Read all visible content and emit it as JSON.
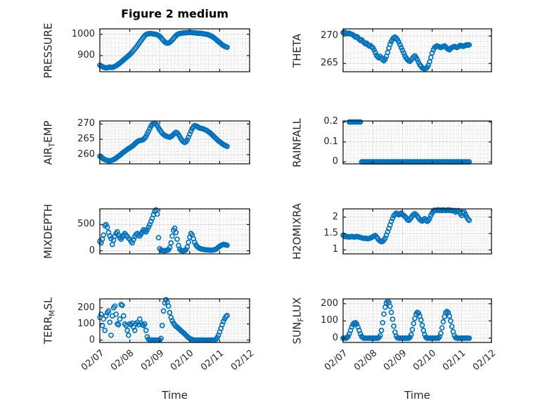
{
  "title": "Figure 2 medium",
  "x_axis": {
    "label": "Time",
    "tick_labels": [
      "02/07",
      "02/08",
      "02/09",
      "02/10",
      "02/11",
      "02/12"
    ],
    "range_days": [
      0,
      5
    ],
    "minor_step_days": 0.125
  },
  "sampling": {
    "start_day": 0,
    "step_days": 0.0416667
  },
  "marker": {
    "shape": "open-circle",
    "color": "#0072BD",
    "radius": 3,
    "stroke_width": 1.7
  },
  "colors": {
    "accent_blue": "#0072BD",
    "axes_box": "#1b1b1b",
    "major_grid": "#dcdcdc",
    "minor_grid": "#cacaca",
    "text": "#262626",
    "background": "#ffffff"
  },
  "chart_data": [
    {
      "id": "pressure",
      "type": "scatter",
      "row": 0,
      "col": 0,
      "ylabel": {
        "pre": "PRESSURE",
        "sub": "",
        "post": ""
      },
      "ylim": [
        825,
        1025
      ],
      "yticks": [
        900,
        1000
      ],
      "ytick_labels": [
        "900",
        "1000"
      ],
      "yminor_step": 20,
      "values": [
        856,
        852,
        849,
        846,
        844,
        843,
        844,
        845,
        847,
        846,
        845,
        847,
        850,
        853,
        857,
        861,
        865,
        870,
        875,
        880,
        885,
        890,
        895,
        900,
        905,
        911,
        917,
        924,
        931,
        938,
        946,
        954,
        962,
        970,
        978,
        986,
        993,
        998,
        1001,
        1002,
        1003,
        1003,
        1002,
        1001,
        1000,
        999,
        997,
        994,
        990,
        984,
        977,
        970,
        964,
        960,
        958,
        959,
        962,
        967,
        973,
        980,
        987,
        993,
        998,
        1001,
        1003,
        1004,
        1005,
        1006,
        1006,
        1007,
        1007,
        1008,
        1008,
        1008,
        1007,
        1007,
        1006,
        1006,
        1005,
        1005,
        1004,
        1004,
        1003,
        1002,
        1001,
        1000,
        999,
        997,
        995,
        992,
        989,
        985,
        981,
        976,
        971,
        966,
        961,
        956,
        951,
        947,
        944,
        941,
        939
      ]
    },
    {
      "id": "theta",
      "type": "scatter",
      "row": 0,
      "col": 1,
      "ylabel": {
        "pre": "THETA",
        "sub": "",
        "post": ""
      },
      "ylim": [
        263.5,
        271.3
      ],
      "yticks": [
        265,
        270
      ],
      "ytick_labels": [
        "265",
        "270"
      ],
      "yminor_step": 1,
      "values": [
        270.6,
        270.7,
        270.6,
        270.5,
        270.4,
        270.5,
        270.4,
        270.3,
        270.2,
        270.0,
        269.8,
        269.9,
        269.7,
        269.4,
        269.2,
        269.3,
        269.0,
        268.8,
        268.6,
        268.7,
        268.4,
        268.2,
        268.3,
        268.0,
        267.9,
        267.5,
        267.0,
        266.5,
        266.2,
        266.0,
        266.3,
        266.0,
        265.7,
        265.5,
        265.8,
        266.3,
        267.0,
        267.8,
        268.5,
        269.0,
        269.4,
        269.7,
        269.8,
        269.6,
        269.3,
        268.9,
        268.4,
        267.9,
        267.4,
        266.9,
        266.4,
        266.0,
        265.7,
        265.5,
        265.4,
        265.6,
        265.9,
        266.2,
        266.4,
        266.1,
        265.7,
        265.2,
        264.8,
        264.5,
        264.2,
        264.1,
        264.0,
        264.1,
        264.3,
        264.7,
        265.3,
        266.1,
        266.9,
        267.5,
        267.9,
        268.1,
        268.2,
        268.1,
        268.0,
        267.9,
        268.0,
        268.1,
        268.2,
        268.0,
        267.8,
        267.6,
        267.5,
        267.7,
        267.9,
        268.0,
        268.1,
        268.0,
        267.9,
        268.0,
        268.2,
        268.3,
        268.2,
        268.1,
        268.2,
        268.3,
        268.4,
        268.3,
        268.4
      ]
    },
    {
      "id": "air_temp",
      "type": "scatter",
      "row": 1,
      "col": 0,
      "ylabel": {
        "pre": "AIR",
        "sub": "T",
        "post": "EMP"
      },
      "ylim": [
        257,
        271
      ],
      "yticks": [
        260,
        265,
        270
      ],
      "ytick_labels": [
        "260",
        "265",
        "270"
      ],
      "yminor_step": 1,
      "values": [
        259.5,
        259.2,
        258.9,
        258.6,
        258.4,
        258.2,
        258.1,
        258.0,
        258.0,
        258.1,
        258.2,
        258.4,
        258.6,
        258.9,
        259.2,
        259.5,
        259.8,
        260.1,
        260.5,
        260.8,
        261.1,
        261.4,
        261.7,
        262.0,
        262.2,
        262.5,
        262.8,
        263.1,
        263.5,
        263.9,
        264.2,
        264.5,
        264.6,
        264.7,
        264.8,
        265.0,
        265.4,
        266.0,
        266.8,
        267.6,
        268.5,
        269.3,
        269.9,
        270.2,
        270.3,
        270.0,
        269.5,
        268.8,
        268.1,
        267.5,
        267.0,
        266.6,
        266.3,
        266.1,
        265.9,
        265.8,
        265.7,
        265.9,
        266.2,
        266.6,
        267.0,
        267.3,
        267.1,
        266.6,
        265.9,
        265.2,
        264.6,
        264.2,
        264.0,
        264.2,
        264.8,
        265.7,
        266.7,
        267.7,
        268.5,
        269.1,
        269.5,
        269.4,
        269.2,
        268.9,
        268.7,
        268.6,
        268.5,
        268.4,
        268.2,
        268.0,
        267.8,
        267.5,
        267.2,
        266.9,
        266.5,
        266.1,
        265.7,
        265.3,
        264.9,
        264.5,
        264.2,
        263.9,
        263.6,
        263.3,
        263.1,
        262.9,
        262.7
      ]
    },
    {
      "id": "rainfall",
      "type": "scatter",
      "row": 1,
      "col": 1,
      "ylabel": {
        "pre": "RAINFALL",
        "sub": "",
        "post": ""
      },
      "ylim": [
        -0.01,
        0.205
      ],
      "yticks": [
        0,
        0.1,
        0.2
      ],
      "ytick_labels": [
        "0",
        "0.1",
        "0.2"
      ],
      "yminor_step": 0.02,
      "values": [
        null,
        null,
        null,
        null,
        null,
        0.2,
        0.2,
        0.2,
        0.2,
        0.2,
        0.2,
        0.2,
        0.2,
        0.2,
        0.2,
        0,
        0,
        0,
        0,
        0,
        0,
        0,
        0,
        0,
        0,
        0,
        0,
        0,
        0,
        0,
        0,
        0,
        0,
        0,
        0,
        0,
        0,
        0,
        0,
        0,
        0,
        0,
        0,
        0,
        0,
        0,
        0,
        0,
        0,
        0,
        0,
        0,
        0,
        0,
        0,
        0,
        0,
        0,
        0,
        0,
        0,
        0,
        0,
        0,
        0,
        0,
        0,
        0,
        0,
        0,
        0,
        0,
        0,
        0,
        0,
        0,
        0,
        0,
        0,
        0,
        0,
        0,
        0,
        0,
        0,
        0,
        0,
        0,
        0,
        0,
        0,
        0,
        0,
        0,
        0,
        0,
        0,
        0,
        0,
        0,
        0,
        0,
        0
      ]
    },
    {
      "id": "mixdepth",
      "type": "scatter",
      "row": 2,
      "col": 0,
      "ylabel": {
        "pre": "MIXDEPTH",
        "sub": "",
        "post": ""
      },
      "ylim": [
        -60,
        800
      ],
      "yticks": [
        0,
        500
      ],
      "ytick_labels": [
        "0",
        "500"
      ],
      "yminor_step": 100,
      "values": [
        180,
        150,
        220,
        300,
        480,
        500,
        450,
        350,
        280,
        230,
        120,
        200,
        280,
        330,
        360,
        300,
        250,
        220,
        260,
        300,
        330,
        300,
        270,
        240,
        220,
        180,
        150,
        210,
        270,
        310,
        330,
        300,
        280,
        320,
        360,
        400,
        380,
        360,
        400,
        450,
        500,
        560,
        620,
        690,
        750,
        780,
        700,
        250,
        40,
        10,
        5,
        0,
        0,
        5,
        10,
        20,
        60,
        150,
        280,
        390,
        430,
        350,
        220,
        100,
        30,
        5,
        0,
        0,
        5,
        20,
        70,
        160,
        260,
        330,
        300,
        230,
        160,
        110,
        80,
        60,
        45,
        35,
        30,
        25,
        20,
        18,
        15,
        15,
        12,
        10,
        12,
        15,
        20,
        30,
        45,
        65,
        85,
        100,
        112,
        120,
        118,
        112,
        105
      ]
    },
    {
      "id": "h2omixra",
      "type": "scatter",
      "row": 2,
      "col": 1,
      "ylabel": {
        "pre": "H2OMIXRA",
        "sub": "",
        "post": ""
      },
      "ylim": [
        0.88,
        2.25
      ],
      "yticks": [
        1,
        1.5,
        2
      ],
      "ytick_labels": [
        "1",
        "1.5",
        "2"
      ],
      "yminor_step": 0.1,
      "values": [
        1.45,
        1.42,
        1.4,
        1.41,
        1.4,
        1.39,
        1.4,
        1.41,
        1.4,
        1.39,
        1.4,
        1.41,
        1.4,
        1.39,
        1.38,
        1.37,
        1.36,
        1.35,
        1.36,
        1.35,
        1.34,
        1.35,
        1.36,
        1.38,
        1.4,
        1.42,
        1.44,
        1.4,
        1.35,
        1.3,
        1.27,
        1.25,
        1.26,
        1.3,
        1.36,
        1.45,
        1.55,
        1.65,
        1.76,
        1.87,
        1.96,
        2.04,
        2.09,
        2.12,
        2.1,
        2.07,
        2.1,
        2.12,
        2.08,
        2.05,
        2.02,
        1.98,
        1.92,
        1.9,
        1.93,
        1.98,
        2.04,
        2.08,
        2.1,
        2.07,
        2.03,
        1.98,
        1.93,
        1.9,
        1.88,
        1.92,
        1.95,
        1.9,
        1.87,
        1.9,
        1.96,
        2.05,
        2.12,
        2.18,
        2.21,
        2.2,
        2.21,
        2.22,
        2.2,
        2.21,
        2.2,
        2.22,
        2.21,
        2.2,
        2.21,
        2.22,
        2.2,
        2.21,
        2.2,
        2.19,
        2.2,
        2.15,
        2.18,
        2.2,
        2.16,
        2.1,
        2.05,
        2.12,
        2.15,
        2.08,
        2.0,
        1.94,
        1.9
      ]
    },
    {
      "id": "terr_msl",
      "type": "scatter",
      "row": 3,
      "col": 0,
      "ylabel": {
        "pre": "TERR",
        "sub": "M",
        "post": "SL"
      },
      "ylim": [
        -15,
        255
      ],
      "yticks": [
        0,
        100,
        200
      ],
      "ytick_labels": [
        "0",
        "100",
        "200"
      ],
      "yminor_step": 20,
      "values": [
        140,
        160,
        90,
        130,
        60,
        150,
        170,
        180,
        110,
        30,
        150,
        200,
        210,
        160,
        100,
        95,
        130,
        220,
        215,
        150,
        100,
        90,
        60,
        30,
        100,
        95,
        105,
        80,
        60,
        100,
        110,
        95,
        130,
        105,
        95,
        90,
        100,
        60,
        20,
        5,
        0,
        0,
        0,
        0,
        0,
        0,
        0,
        0,
        0,
        10,
        90,
        180,
        230,
        250,
        235,
        210,
        170,
        140,
        120,
        105,
        95,
        85,
        80,
        72,
        65,
        58,
        52,
        45,
        38,
        30,
        22,
        15,
        10,
        6,
        3,
        0,
        0,
        0,
        0,
        0,
        0,
        0,
        0,
        0,
        0,
        0,
        0,
        0,
        0,
        0,
        0,
        0,
        0,
        5,
        15,
        30,
        50,
        72,
        95,
        115,
        132,
        145,
        152
      ]
    },
    {
      "id": "sun_flux",
      "type": "scatter",
      "row": 3,
      "col": 1,
      "ylabel": {
        "pre": "SUN",
        "sub": "F",
        "post": "LUX"
      },
      "ylim": [
        -25,
        228
      ],
      "yticks": [
        0,
        100,
        200
      ],
      "ytick_labels": [
        "0",
        "100",
        "200"
      ],
      "yminor_step": 20,
      "values": [
        0,
        0,
        0,
        2,
        10,
        25,
        45,
        65,
        80,
        88,
        90,
        82,
        65,
        45,
        25,
        10,
        3,
        0,
        0,
        0,
        0,
        0,
        0,
        0,
        0,
        0,
        0,
        0,
        0,
        4,
        15,
        45,
        90,
        140,
        180,
        205,
        215,
        208,
        185,
        150,
        110,
        70,
        35,
        12,
        2,
        0,
        0,
        0,
        0,
        0,
        0,
        0,
        0,
        0,
        5,
        20,
        50,
        85,
        115,
        140,
        150,
        145,
        128,
        105,
        75,
        45,
        20,
        5,
        0,
        0,
        0,
        0,
        0,
        0,
        0,
        0,
        0,
        0,
        8,
        28,
        60,
        95,
        125,
        148,
        155,
        148,
        128,
        100,
        68,
        38,
        15,
        3,
        0,
        0,
        0,
        0,
        0,
        0,
        0,
        0,
        0,
        0,
        0
      ]
    }
  ]
}
